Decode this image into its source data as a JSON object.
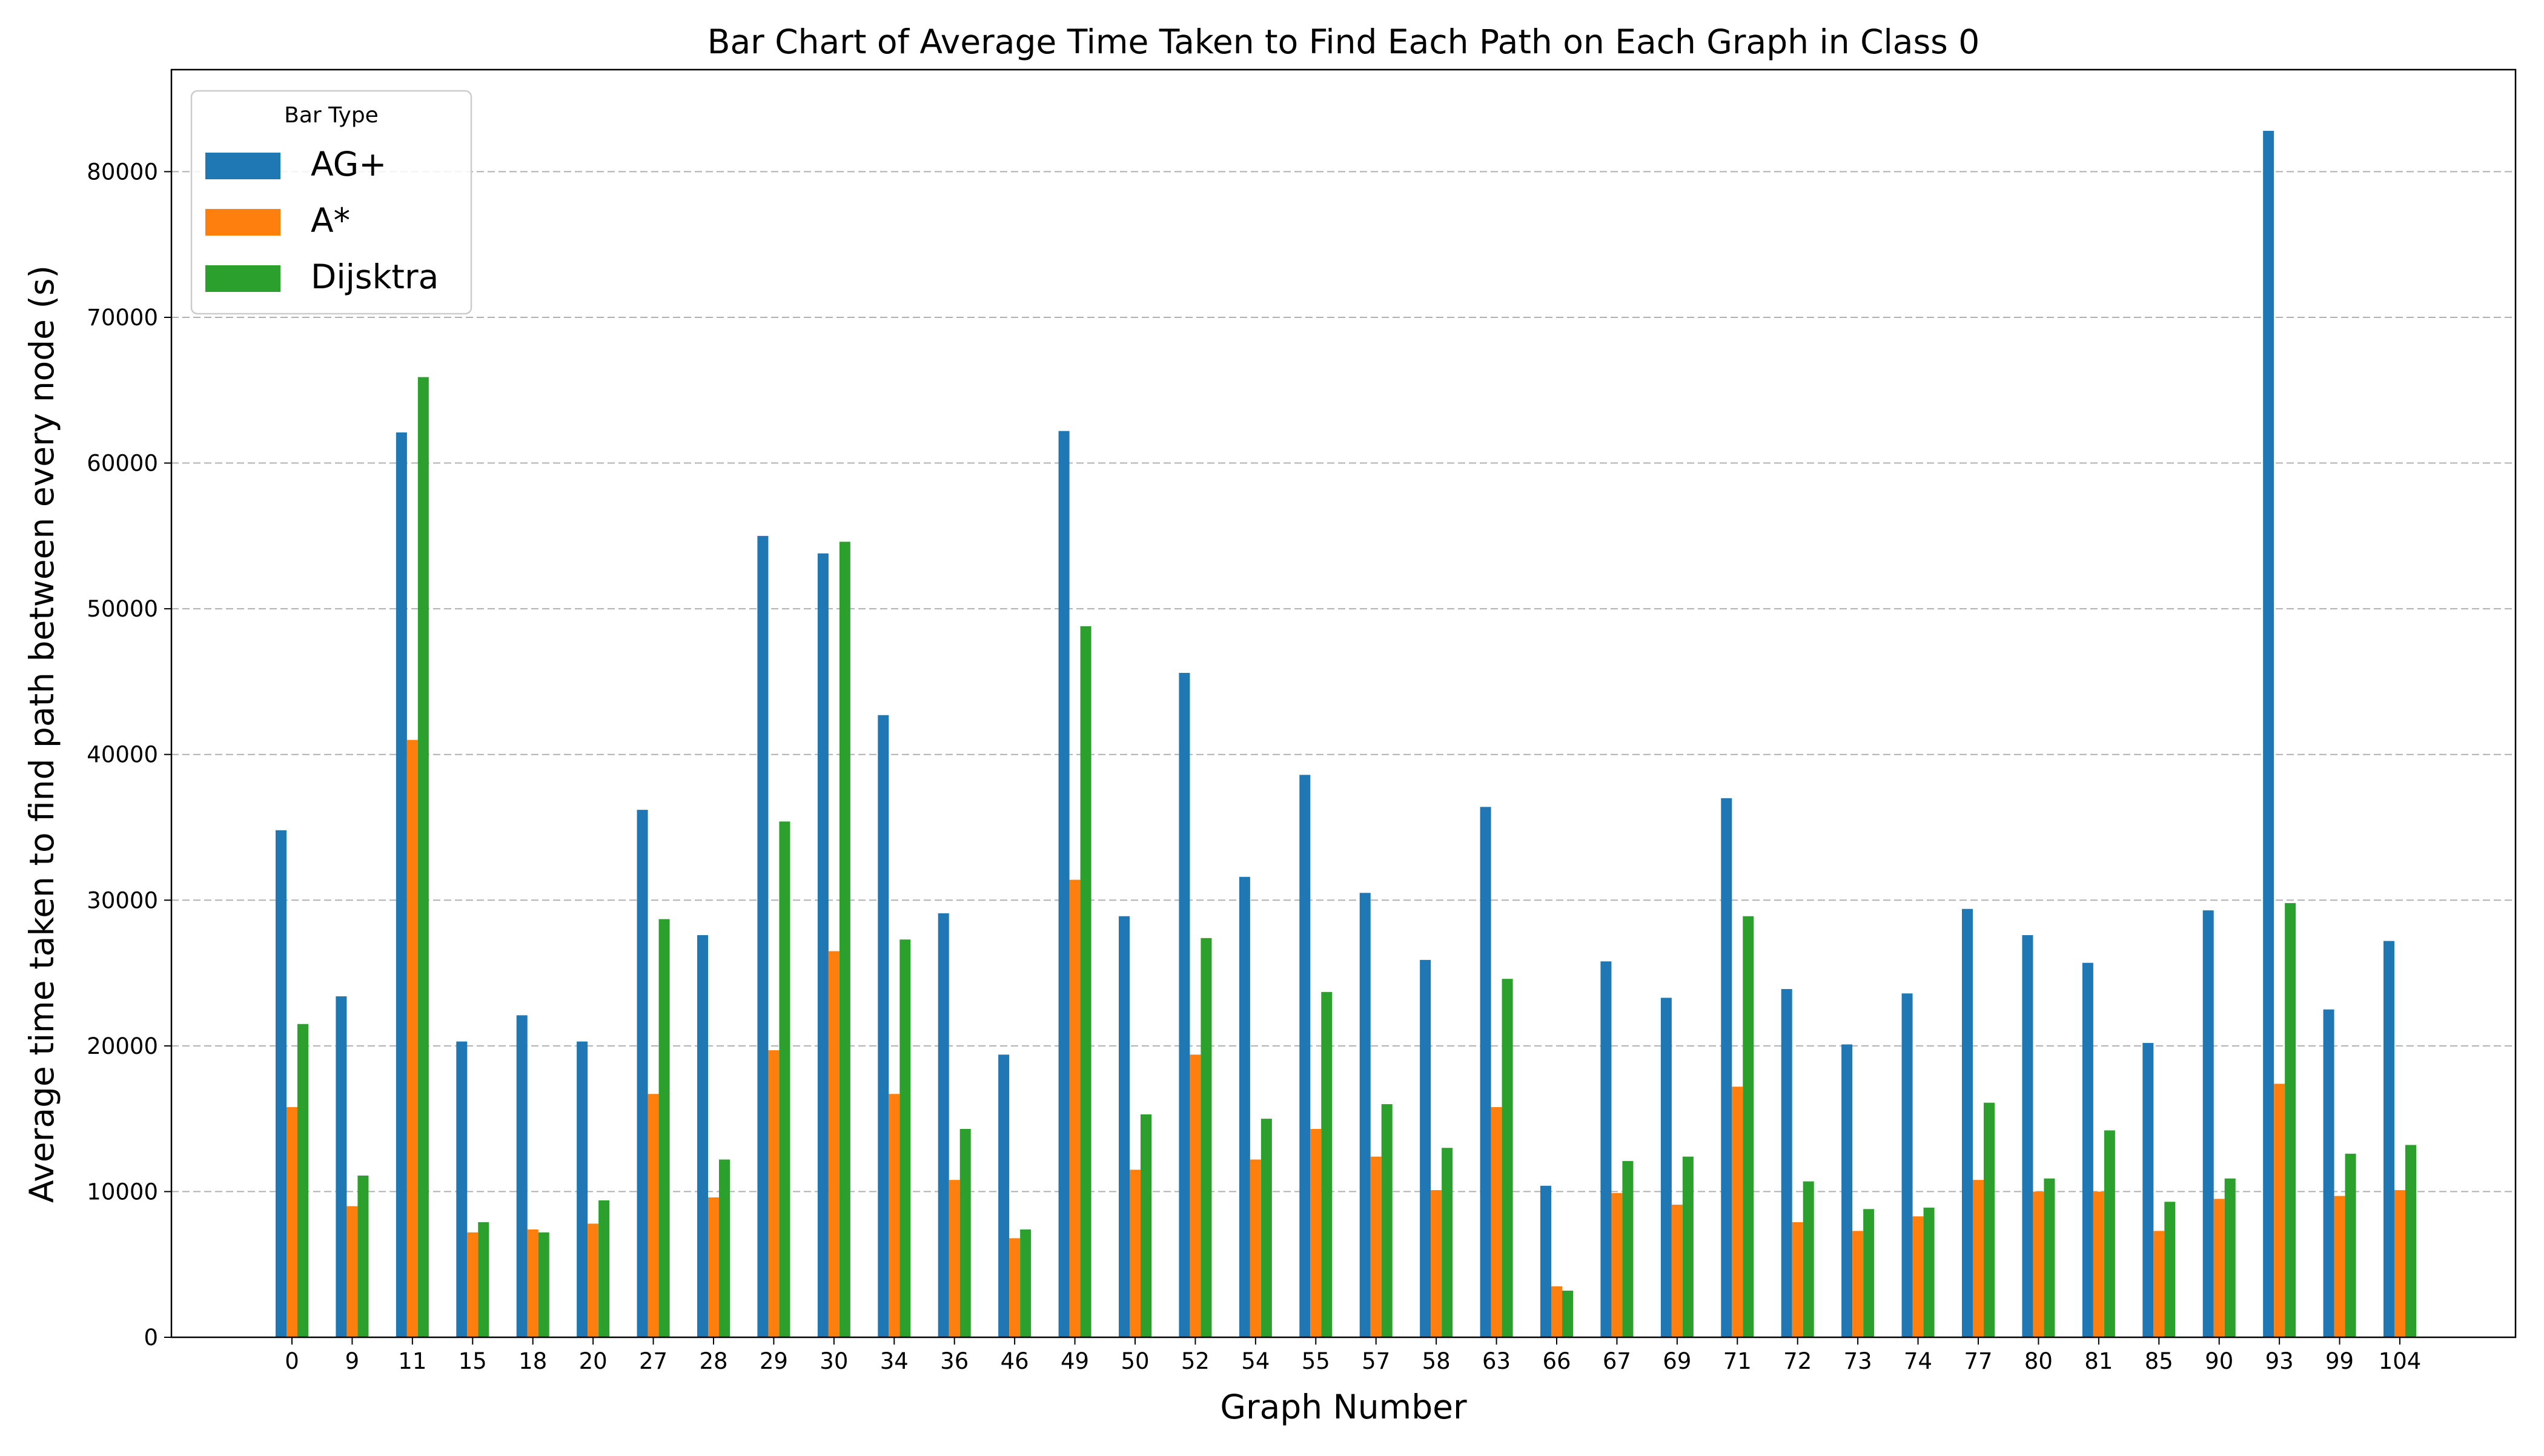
{
  "chart_data": {
    "type": "bar",
    "title": "Bar Chart of Average Time Taken to Find Each Path on Each Graph in Class 0",
    "xlabel": "Graph Number",
    "ylabel": "Average time taken to find path between every node (s)",
    "ylim": [
      0,
      87000
    ],
    "yticks": [
      0,
      10000,
      20000,
      30000,
      40000,
      50000,
      60000,
      70000,
      80000
    ],
    "grid": "horizontal-dashed",
    "legend": {
      "title": "Bar Type",
      "placement": "top-left"
    },
    "categories": [
      "0",
      "9",
      "11",
      "15",
      "18",
      "20",
      "27",
      "28",
      "29",
      "30",
      "34",
      "36",
      "46",
      "49",
      "50",
      "52",
      "54",
      "55",
      "57",
      "58",
      "63",
      "66",
      "67",
      "69",
      "71",
      "72",
      "73",
      "74",
      "77",
      "80",
      "81",
      "85",
      "90",
      "93",
      "99",
      "104"
    ],
    "series": [
      {
        "name": "AG+",
        "color": "#1f77b4",
        "values": [
          34800,
          23400,
          62100,
          20300,
          22100,
          20300,
          36200,
          27600,
          55000,
          53800,
          42700,
          29100,
          19400,
          62200,
          28900,
          45600,
          31600,
          38600,
          30500,
          25900,
          36400,
          10400,
          25800,
          23300,
          37000,
          23900,
          20100,
          23600,
          29400,
          27600,
          25700,
          20200,
          29300,
          82800,
          22500,
          27200
        ]
      },
      {
        "name": "A*",
        "color": "#ff7f0e",
        "values": [
          15800,
          9000,
          41000,
          7200,
          7400,
          7800,
          16700,
          9600,
          19700,
          26500,
          16700,
          10800,
          6800,
          31400,
          11500,
          19400,
          12200,
          14300,
          12400,
          10100,
          15800,
          3500,
          9900,
          9100,
          17200,
          7900,
          7300,
          8300,
          10800,
          10000,
          10000,
          7300,
          9500,
          17400,
          9700,
          10100
        ]
      },
      {
        "name": "Dijsktra",
        "color": "#2ca02c",
        "values": [
          21500,
          11100,
          65900,
          7900,
          7200,
          9400,
          28700,
          12200,
          35400,
          54600,
          27300,
          14300,
          7400,
          48800,
          15300,
          27400,
          15000,
          23700,
          16000,
          13000,
          24600,
          3200,
          12100,
          12400,
          28900,
          10700,
          8800,
          8900,
          16100,
          10900,
          14200,
          9300,
          10900,
          29800,
          12600,
          13200
        ]
      }
    ]
  }
}
